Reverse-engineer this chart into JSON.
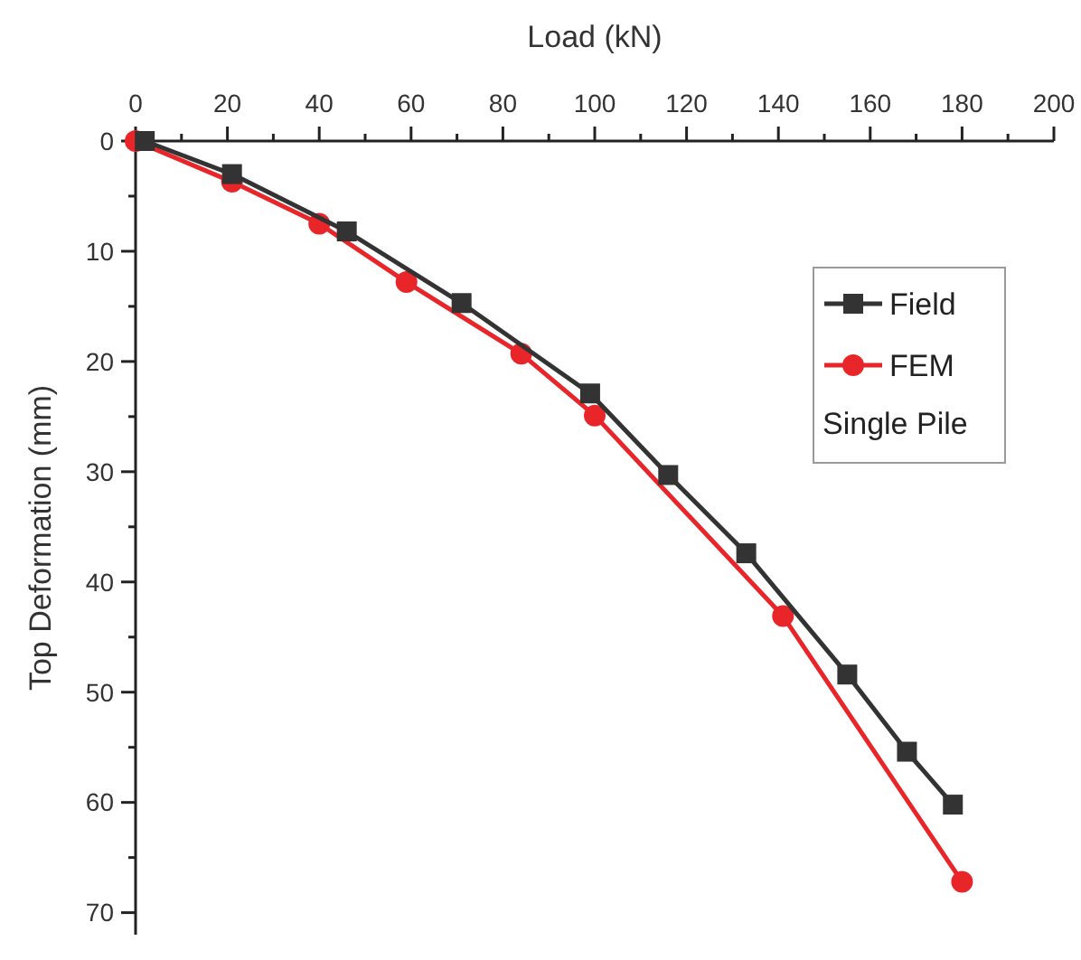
{
  "chart_data": {
    "type": "line",
    "xlabel": "Load (kN)",
    "ylabel": "Top Deformation (mm)",
    "xlim": [
      0,
      200
    ],
    "ylim": [
      72,
      0
    ],
    "xticks": [
      0,
      {
        "value": 10,
        "label": null
      },
      20,
      {
        "value": 30,
        "label": null
      },
      40,
      {
        "value": 50,
        "label": null
      },
      60,
      {
        "value": 70,
        "label": null
      },
      80,
      {
        "value": 90,
        "label": null
      },
      100,
      {
        "value": 110,
        "label": null
      },
      120,
      {
        "value": 130,
        "label": null
      },
      140,
      {
        "value": 150,
        "label": null
      },
      160,
      {
        "value": 170,
        "label": null
      },
      180,
      {
        "value": 190,
        "label": null
      },
      200
    ],
    "yticks": [
      0,
      {
        "value": 5,
        "label": null
      },
      10,
      {
        "value": 15,
        "label": null
      },
      20,
      {
        "value": 25,
        "label": null
      },
      30,
      {
        "value": 35,
        "label": null
      },
      40,
      {
        "value": 45,
        "label": null
      },
      50,
      {
        "value": 55,
        "label": null
      },
      60,
      {
        "value": 65,
        "label": null
      },
      70
    ],
    "series": [
      {
        "name": "Field",
        "color": "#333333",
        "marker": "square",
        "x": [
          2,
          21,
          46,
          71,
          99,
          116,
          133,
          155,
          168,
          178
        ],
        "values": [
          0,
          3,
          8.2,
          14.7,
          22.9,
          30.3,
          37.4,
          48.4,
          55.4,
          60.2
        ]
      },
      {
        "name": "FEM",
        "color": "#e8262a",
        "marker": "circle",
        "x": [
          0,
          21,
          40,
          59,
          84,
          100,
          141,
          180
        ],
        "values": [
          0,
          3.7,
          7.5,
          12.8,
          19.3,
          24.9,
          43.1,
          67.2
        ]
      }
    ],
    "legend": "top right",
    "annotations": [
      "Single Pile"
    ],
    "grid": false
  }
}
